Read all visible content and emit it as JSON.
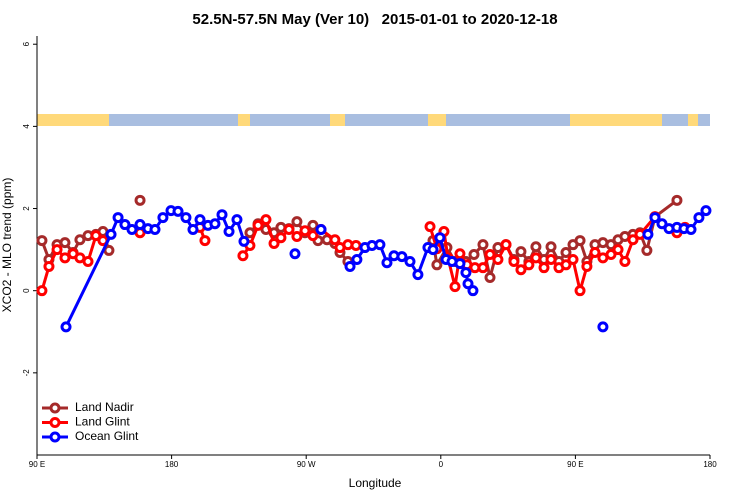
{
  "chart_data": {
    "type": "line",
    "title": "52.5N-57.5N May (Ver 10)   2015-01-01 to 2020-12-18",
    "x_label": "Longitude",
    "y_label": "XCO2 - MLO trend (ppm)",
    "xlim": [
      90,
      540
    ],
    "xticks": [
      {
        "value": 90,
        "label": "90 E"
      },
      {
        "value": 180,
        "label": "180"
      },
      {
        "value": 270,
        "label": "90 W"
      },
      {
        "value": 360,
        "label": "0"
      },
      {
        "value": 450,
        "label": "90 E"
      },
      {
        "value": 540,
        "label": "180"
      }
    ],
    "ylim": [
      -4,
      6.2
    ],
    "yticks": [
      -2,
      0,
      2,
      4,
      6
    ],
    "legend": "bottom-left",
    "series": [
      {
        "name": "Land Nadir",
        "color": "#a52a2a",
        "x": [
          93.3,
          98.0,
          103.4,
          108.7,
          114.1,
          118.7,
          124.1,
          129.4,
          134.1,
          138.1,
          null,
          158.9,
          null,
          232.4,
          237.8,
          243.1,
          248.5,
          253.1,
          258.5,
          263.8,
          269.2,
          274.5,
          277.9,
          283.9,
          289.2,
          292.6,
          297.9,
          null,
          354.8,
          357.4,
          364.1,
          369.5,
          376.8,
          382.2,
          388.2,
          392.9,
          398.2,
          403.6,
          408.9,
          413.6,
          418.9,
          423.6,
          429.0,
          433.7,
          439.0,
          443.7,
          448.4,
          453.1,
          457.7,
          463.1,
          468.4,
          473.8,
          478.5,
          483.1,
          488.5,
          493.2,
          497.8,
          503.2,
          517.9
        ],
        "values": [
          1.22,
          0.76,
          1.12,
          1.17,
          0.93,
          1.24,
          1.34,
          1.37,
          1.44,
          0.98,
          null,
          2.2,
          null,
          1.41,
          1.63,
          1.49,
          1.41,
          1.54,
          1.51,
          1.68,
          1.41,
          1.59,
          1.22,
          1.24,
          1.15,
          0.93,
          0.71,
          null,
          1.22,
          0.63,
          1.05,
          0.71,
          0.71,
          0.88,
          1.12,
          0.32,
          1.05,
          1.12,
          0.76,
          0.95,
          0.71,
          1.07,
          0.76,
          1.07,
          0.71,
          0.93,
          1.12,
          1.22,
          0.71,
          1.12,
          1.17,
          1.12,
          1.24,
          1.32,
          1.37,
          1.41,
          0.98,
          1.8,
          2.2
        ]
      },
      {
        "name": "Land Glint",
        "color": "#ff0000",
        "x": [
          93.3,
          98.0,
          103.4,
          108.7,
          114.1,
          118.7,
          124.1,
          129.4,
          134.1,
          null,
          158.9,
          null,
          199.0,
          202.3,
          null,
          227.7,
          232.4,
          237.8,
          243.1,
          248.5,
          253.1,
          258.5,
          263.8,
          269.2,
          274.5,
          279.9,
          289.2,
          292.6,
          297.9,
          303.3,
          null,
          352.8,
          357.4,
          362.1,
          364.8,
          369.5,
          372.8,
          377.5,
          382.8,
          388.2,
          392.9,
          398.2,
          403.6,
          408.9,
          413.6,
          418.9,
          423.6,
          429.0,
          433.7,
          439.0,
          443.7,
          448.4,
          453.1,
          457.7,
          463.1,
          468.4,
          473.8,
          478.5,
          483.1,
          488.5,
          493.2,
          503.2,
          null,
          517.9,
          523.3
        ],
        "values": [
          0,
          0.59,
          1.0,
          0.8,
          0.9,
          0.8,
          0.71,
          1.34,
          1.22,
          null,
          1.41,
          null,
          1.54,
          1.22,
          null,
          0.85,
          1.1,
          1.59,
          1.73,
          1.15,
          1.29,
          1.49,
          1.32,
          1.46,
          1.34,
          1.49,
          1.24,
          1.05,
          1.12,
          1.1,
          null,
          1.56,
          1.02,
          1.44,
          0.8,
          0.1,
          0.9,
          0.63,
          0.56,
          0.56,
          0.88,
          0.76,
          1.12,
          0.71,
          0.51,
          0.63,
          0.8,
          0.56,
          0.76,
          0.56,
          0.63,
          0.76,
          0,
          0.59,
          0.93,
          0.8,
          0.88,
          1.0,
          0.71,
          1.24,
          1.37,
          1.8,
          null,
          1.41,
          1.54
        ]
      },
      {
        "name": "Ocean Glint",
        "color": "#0000ff",
        "x": [
          109.4,
          139.5,
          144.2,
          148.8,
          153.5,
          158.9,
          164.2,
          168.9,
          174.2,
          179.6,
          184.3,
          189.6,
          194.3,
          199.0,
          204.3,
          209.0,
          213.7,
          218.4,
          223.7,
          228.4,
          null,
          262.5,
          null,
          279.9,
          null,
          299.3,
          303.9,
          309.3,
          314.0,
          319.3,
          324.0,
          328.7,
          334.0,
          339.4,
          344.7,
          351.4,
          354.8,
          359.4,
          363.5,
          367.5,
          372.8,
          376.8,
          378.2,
          381.5,
          null,
          468.4,
          null,
          498.5,
          503.2,
          507.9,
          512.6,
          517.9,
          522.6,
          527.3,
          532.6,
          537.3
        ],
        "values": [
          -0.88,
          1.37,
          1.78,
          1.61,
          1.49,
          1.61,
          1.51,
          1.49,
          1.78,
          1.95,
          1.93,
          1.78,
          1.49,
          1.73,
          1.59,
          1.63,
          1.85,
          1.44,
          1.73,
          1.2,
          null,
          0.9,
          null,
          1.49,
          null,
          0.59,
          0.76,
          1.05,
          1.1,
          1.12,
          0.68,
          0.85,
          0.83,
          0.71,
          0.39,
          1.05,
          1.0,
          1.29,
          0.76,
          0.71,
          0.66,
          0.44,
          0.17,
          0,
          null,
          -0.88,
          null,
          1.37,
          1.78,
          1.63,
          1.51,
          1.54,
          1.51,
          1.49,
          1.78,
          1.95
        ]
      }
    ]
  }
}
